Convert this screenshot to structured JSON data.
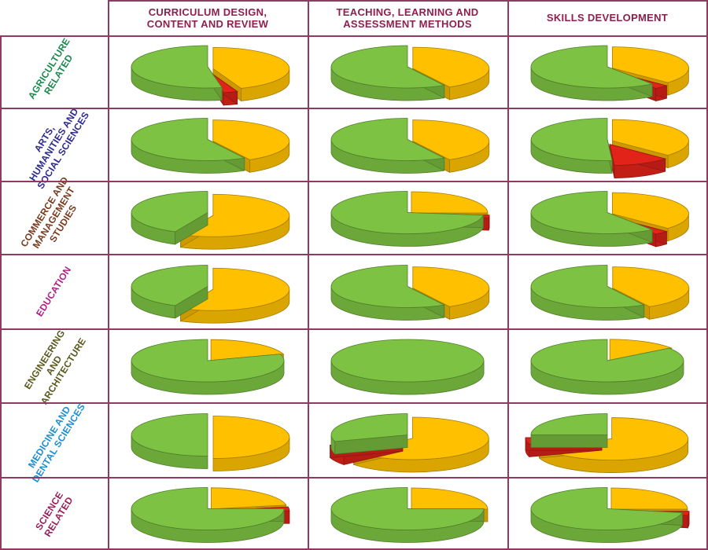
{
  "colors": {
    "grid": "#8e3a63",
    "header_text": "#8e1f4f",
    "green": "#7dc242",
    "yellow": "#ffc000",
    "red": "#e2231a"
  },
  "columns": [
    {
      "label": "CURRICULUM DESIGN,\nCONTENT AND REVIEW"
    },
    {
      "label": "TEACHING, LEARNING AND\nASSESSMENT METHODS"
    },
    {
      "label": "SKILLS DEVELOPMENT"
    }
  ],
  "rows": [
    {
      "label": "AGRICULTURE\nRELATED",
      "color": "#1a8a4e"
    },
    {
      "label": "ARTS,\nHUMANITIES AND\nSOCIAL SCIENCES",
      "color": "#2e2b8f"
    },
    {
      "label": "COMMERCE AND\nMANAGEMENT\nSTUDIES",
      "color": "#7a3b1e"
    },
    {
      "label": "EDUCATION",
      "color": "#b0208a"
    },
    {
      "label": "ENGINEERING\nAND\nARCHITECTURE",
      "color": "#5a5a1e"
    },
    {
      "label": "MEDICINE AND\nDENTAL SCIENCES",
      "color": "#1b8fd1"
    },
    {
      "label": "SCIENCE\nRELATED",
      "color": "#9a1f5a"
    }
  ],
  "chart_data": {
    "type": "pie",
    "series_colors": {
      "green": "#7dc242",
      "yellow": "#ffc000",
      "red": "#e2231a"
    },
    "charts": [
      {
        "row": 0,
        "col": 0,
        "green": 53,
        "yellow": 44,
        "red": 3
      },
      {
        "row": 0,
        "col": 1,
        "green": 58,
        "yellow": 42,
        "red": 0
      },
      {
        "row": 0,
        "col": 2,
        "green": 60,
        "yellow": 37,
        "red": 3
      },
      {
        "row": 1,
        "col": 0,
        "green": 58,
        "yellow": 42,
        "red": 0
      },
      {
        "row": 1,
        "col": 1,
        "green": 58,
        "yellow": 42,
        "red": 0
      },
      {
        "row": 1,
        "col": 2,
        "green": 51,
        "yellow": 37,
        "red": 12
      },
      {
        "row": 2,
        "col": 0,
        "green": 43,
        "yellow": 57,
        "red": 0
      },
      {
        "row": 2,
        "col": 1,
        "green": 73,
        "yellow": 25,
        "red": 2
      },
      {
        "row": 2,
        "col": 2,
        "green": 60,
        "yellow": 37,
        "red": 3
      },
      {
        "row": 3,
        "col": 0,
        "green": 43,
        "yellow": 57,
        "red": 0
      },
      {
        "row": 3,
        "col": 1,
        "green": 58,
        "yellow": 42,
        "red": 0
      },
      {
        "row": 3,
        "col": 2,
        "green": 58,
        "yellow": 42,
        "red": 0
      },
      {
        "row": 4,
        "col": 0,
        "green": 80,
        "yellow": 20,
        "red": 0
      },
      {
        "row": 4,
        "col": 1,
        "green": 100,
        "yellow": 0,
        "red": 0
      },
      {
        "row": 4,
        "col": 2,
        "green": 85,
        "yellow": 15,
        "red": 0
      },
      {
        "row": 5,
        "col": 0,
        "green": 50,
        "yellow": 50,
        "red": 0
      },
      {
        "row": 5,
        "col": 1,
        "green": 30,
        "yellow": 64,
        "red": 6
      },
      {
        "row": 5,
        "col": 2,
        "green": 25,
        "yellow": 70,
        "red": 5
      },
      {
        "row": 6,
        "col": 0,
        "green": 75,
        "yellow": 22,
        "red": 3
      },
      {
        "row": 6,
        "col": 1,
        "green": 75,
        "yellow": 25,
        "red": 0
      },
      {
        "row": 6,
        "col": 2,
        "green": 72,
        "yellow": 25,
        "red": 3
      }
    ]
  }
}
